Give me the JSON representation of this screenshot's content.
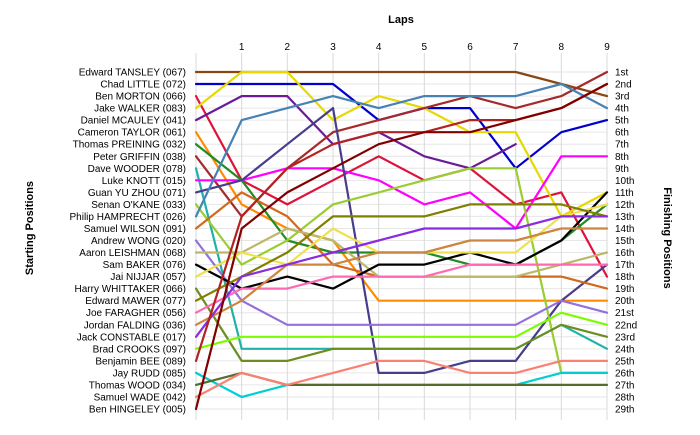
{
  "chart_data": {
    "type": "line",
    "title": "Laps",
    "ylabel_left": "Starting Positions",
    "ylabel_right": "Finishing Positions",
    "x": [
      0,
      1,
      2,
      3,
      4,
      5,
      6,
      7,
      8,
      9
    ],
    "x_tick_labels": [
      "1",
      "2",
      "3",
      "4",
      "5",
      "6",
      "7",
      "8",
      "9"
    ],
    "right_tick_labels": [
      "1st",
      "2nd",
      "3rd",
      "4th",
      "5th",
      "6th",
      "7th",
      "8th",
      "9th",
      "10th",
      "11th",
      "12th",
      "13th",
      "14th",
      "15th",
      "16th",
      "17th",
      "18th",
      "19th",
      "20th",
      "21st",
      "22nd",
      "23rd",
      "24th",
      "25th",
      "26th",
      "27th",
      "28th",
      "29th"
    ],
    "ylim": [
      1,
      29
    ],
    "y_inverted": true,
    "grid": true,
    "series": [
      {
        "name": "Edward TANSLEY (067)",
        "color": "#8b4513",
        "values": [
          1,
          1,
          1,
          1,
          1,
          1,
          1,
          1,
          2,
          3
        ]
      },
      {
        "name": "Chad LITTLE (072)",
        "color": "#0000cd",
        "values": [
          2,
          2,
          2,
          2,
          5,
          4,
          4,
          9,
          6,
          5
        ]
      },
      {
        "name": "Ben MORTON (066)",
        "color": "#dc143c",
        "values": [
          3,
          10,
          12,
          10,
          8,
          10,
          9,
          12,
          11,
          18
        ]
      },
      {
        "name": "Jake WALKER (083)",
        "color": "#e6d800",
        "values": [
          4,
          1,
          1,
          5,
          3,
          4,
          6,
          6,
          13,
          11
        ]
      },
      {
        "name": "Daniel MCAULEY (041)",
        "color": "#6a1b9a",
        "values": [
          5,
          3,
          3,
          7,
          6,
          8,
          9,
          7,
          null,
          null
        ]
      },
      {
        "name": "Cameron TAYLOR (061)",
        "color": "#ff8c00",
        "values": [
          6,
          12,
          14,
          15,
          20,
          20,
          20,
          20,
          20,
          20
        ]
      },
      {
        "name": "Thomas PREINING (032)",
        "color": "#228b22",
        "values": [
          7,
          10,
          15,
          16,
          16,
          16,
          17,
          17,
          15,
          12
        ]
      },
      {
        "name": "Peter GRIFFIN (038)",
        "color": "#a52a2a",
        "values": [
          8,
          13,
          9,
          6,
          5,
          4,
          3,
          4,
          3,
          1
        ]
      },
      {
        "name": "Dave WOODER (078)",
        "color": "#20b2aa",
        "values": [
          9,
          24,
          24,
          24,
          24,
          24,
          24,
          24,
          22,
          24
        ]
      },
      {
        "name": "Luke KNOTT (015)",
        "color": "#ff00ff",
        "values": [
          10,
          10,
          9,
          9,
          10,
          12,
          11,
          14,
          8,
          8
        ]
      },
      {
        "name": "Guan YU ZHOU (071)",
        "color": "#483d8b",
        "values": [
          11,
          10,
          7,
          4,
          26,
          26,
          25,
          25,
          20,
          17
        ]
      },
      {
        "name": "Senan O'KANE (033)",
        "color": "#9acd32",
        "values": [
          12,
          17,
          15,
          12,
          11,
          10,
          9,
          9,
          26,
          26
        ]
      },
      {
        "name": "Philip HAMPRECHT (026)",
        "color": "#4682b4",
        "values": [
          13,
          5,
          4,
          3,
          4,
          3,
          3,
          3,
          2,
          4
        ]
      },
      {
        "name": "Samuel WILSON (091)",
        "color": "#d2691e",
        "values": [
          14,
          11,
          13,
          17,
          18,
          18,
          18,
          18,
          18,
          19
        ]
      },
      {
        "name": "Andrew WONG (020)",
        "color": "#9370db",
        "values": [
          15,
          20,
          22,
          22,
          22,
          22,
          22,
          22,
          20,
          21
        ]
      },
      {
        "name": "Aaron LEISHMAN (068)",
        "color": "#bdb76b",
        "values": [
          16,
          16,
          14,
          15,
          18,
          18,
          18,
          18,
          17,
          16
        ]
      },
      {
        "name": "Sam BAKER (076)",
        "color": "#000000",
        "values": [
          17,
          19,
          18,
          19,
          17,
          17,
          16,
          17,
          15,
          11
        ]
      },
      {
        "name": "Jai NIJJAR (057)",
        "color": "#f0e050",
        "values": [
          18,
          16,
          17,
          14,
          16,
          16,
          16,
          16,
          13,
          12
        ]
      },
      {
        "name": "Harry WHITTAKER (066)",
        "color": "#6b8e23",
        "values": [
          19,
          25,
          25,
          24,
          24,
          24,
          24,
          24,
          22,
          23
        ]
      },
      {
        "name": "Edward MAWER (077)",
        "color": "#808000",
        "values": [
          20,
          18,
          16,
          13,
          13,
          13,
          12,
          12,
          12,
          13
        ]
      },
      {
        "name": "Joe FARAGHER (056)",
        "color": "#ff69b4",
        "values": [
          21,
          19,
          19,
          18,
          18,
          18,
          17,
          17,
          17,
          17
        ]
      },
      {
        "name": "Jordan FALDING (036)",
        "color": "#cd853f",
        "values": [
          22,
          20,
          17,
          17,
          16,
          16,
          15,
          15,
          14,
          14
        ]
      },
      {
        "name": "Jack CONSTABLE (017)",
        "color": "#8a2be2",
        "values": [
          23,
          18,
          17,
          16,
          15,
          14,
          14,
          14,
          13,
          13
        ]
      },
      {
        "name": "Brad CROOKS (097)",
        "color": "#7cfc00",
        "values": [
          24,
          23,
          23,
          23,
          23,
          23,
          23,
          23,
          21,
          22
        ]
      },
      {
        "name": "Benjamin BEE (089)",
        "color": "#b22222",
        "values": [
          25,
          13,
          9,
          7,
          6,
          6,
          5,
          5,
          4,
          2
        ]
      },
      {
        "name": "Jay RUDD (085)",
        "color": "#00ced1",
        "values": [
          26,
          28,
          27,
          27,
          27,
          27,
          27,
          27,
          26,
          26
        ]
      },
      {
        "name": "Thomas WOOD (034)",
        "color": "#556b2f",
        "values": [
          27,
          26,
          27,
          27,
          27,
          27,
          27,
          27,
          27,
          27
        ]
      },
      {
        "name": "Samuel WADE (042)",
        "color": "#fa8072",
        "values": [
          28,
          26,
          27,
          26,
          25,
          25,
          26,
          26,
          25,
          25
        ]
      },
      {
        "name": "Ben HINGELEY (005)",
        "color": "#800000",
        "values": [
          29,
          14,
          11,
          9,
          7,
          6,
          6,
          5,
          4,
          2
        ]
      }
    ]
  }
}
